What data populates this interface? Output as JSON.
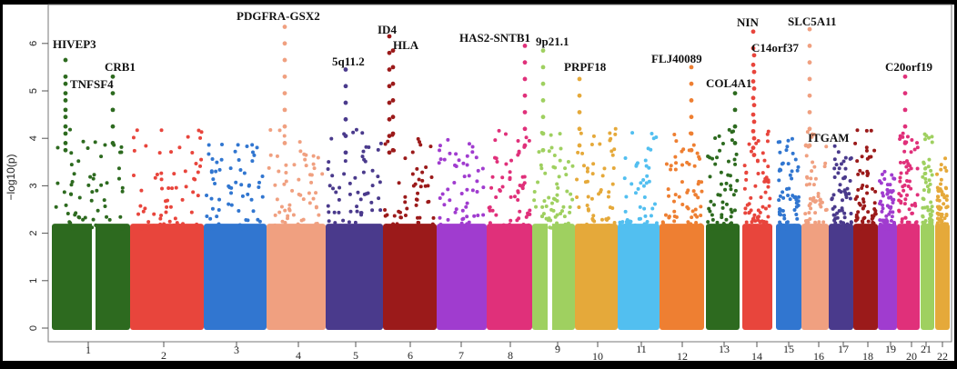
{
  "chart_data": {
    "type": "scatter",
    "subtype": "manhattan",
    "title": "",
    "xlabel": "",
    "ylabel": "−log10(p)",
    "ylim": [
      0,
      6.6
    ],
    "yticks": [
      0,
      1,
      2,
      3,
      4,
      5,
      6
    ],
    "grid": false,
    "legend": "none",
    "chromosomes": [
      {
        "label": "1",
        "color": "#2d6a1f",
        "peak": 5.65
      },
      {
        "label": "2",
        "color": "#e8453c",
        "peak": 4.55
      },
      {
        "label": "3",
        "color": "#3176d0",
        "peak": 4.05
      },
      {
        "label": "4",
        "color": "#f0a080",
        "peak": 6.35
      },
      {
        "label": "5",
        "color": "#4a3a8c",
        "peak": 5.45
      },
      {
        "label": "6",
        "color": "#9b1a1a",
        "peak": 6.15
      },
      {
        "label": "7",
        "color": "#a03ccf",
        "peak": 4.05
      },
      {
        "label": "8",
        "color": "#e0307a",
        "peak": 5.95
      },
      {
        "label": "9",
        "color": "#9fd060",
        "peak": 5.85
      },
      {
        "label": "10",
        "color": "#e5a93a",
        "peak": 5.25
      },
      {
        "label": "11",
        "color": "#52bff0",
        "peak": 4.8
      },
      {
        "label": "12",
        "color": "#ee7f32",
        "peak": 5.5
      },
      {
        "label": "13",
        "color": "#2d6a1f",
        "peak": 4.95
      },
      {
        "label": "14",
        "color": "#e8453c",
        "peak": 6.25
      },
      {
        "label": "15",
        "color": "#3176d0",
        "peak": 4.05
      },
      {
        "label": "16",
        "color": "#f0a080",
        "peak": 6.3
      },
      {
        "label": "17",
        "color": "#4a3a8c",
        "peak": 3.85
      },
      {
        "label": "18",
        "color": "#9b1a1a",
        "peak": 4.6
      },
      {
        "label": "19",
        "color": "#a03ccf",
        "peak": 3.3
      },
      {
        "label": "20",
        "color": "#e0307a",
        "peak": 5.3
      },
      {
        "label": "21",
        "color": "#9fd060",
        "peak": 4.25
      },
      {
        "label": "22",
        "color": "#e5a93a",
        "peak": 3.6
      }
    ],
    "annotations": [
      {
        "label": "HIVEP3",
        "chromosome": "1",
        "value": 5.65
      },
      {
        "label": "TNFSF4",
        "chromosome": "1",
        "value": 5.15
      },
      {
        "label": "CRB1",
        "chromosome": "1",
        "value": 5.3
      },
      {
        "label": "PDGFRA-GSX2",
        "chromosome": "4",
        "value": 6.35
      },
      {
        "label": "5q11.2",
        "chromosome": "5",
        "value": 5.45
      },
      {
        "label": "ID4",
        "chromosome": "6",
        "value": 6.15
      },
      {
        "label": "HLA",
        "chromosome": "6",
        "value": 5.85
      },
      {
        "label": "HAS2-SNTB1",
        "chromosome": "8",
        "value": 5.95
      },
      {
        "label": "9p21.1",
        "chromosome": "9",
        "value": 5.85
      },
      {
        "label": "PRPF18",
        "chromosome": "10",
        "value": 5.25
      },
      {
        "label": "FLJ40089",
        "chromosome": "12",
        "value": 5.5
      },
      {
        "label": "COL4A1",
        "chromosome": "13",
        "value": 4.95
      },
      {
        "label": "NIN",
        "chromosome": "14",
        "value": 6.25
      },
      {
        "label": "C14orf37",
        "chromosome": "14",
        "value": 5.75
      },
      {
        "label": "SLC5A11",
        "chromosome": "16",
        "value": 6.3
      },
      {
        "label": "ITGAM",
        "chromosome": "16",
        "value": 3.85
      },
      {
        "label": "C20orf19",
        "chromosome": "20",
        "value": 5.3
      }
    ]
  }
}
